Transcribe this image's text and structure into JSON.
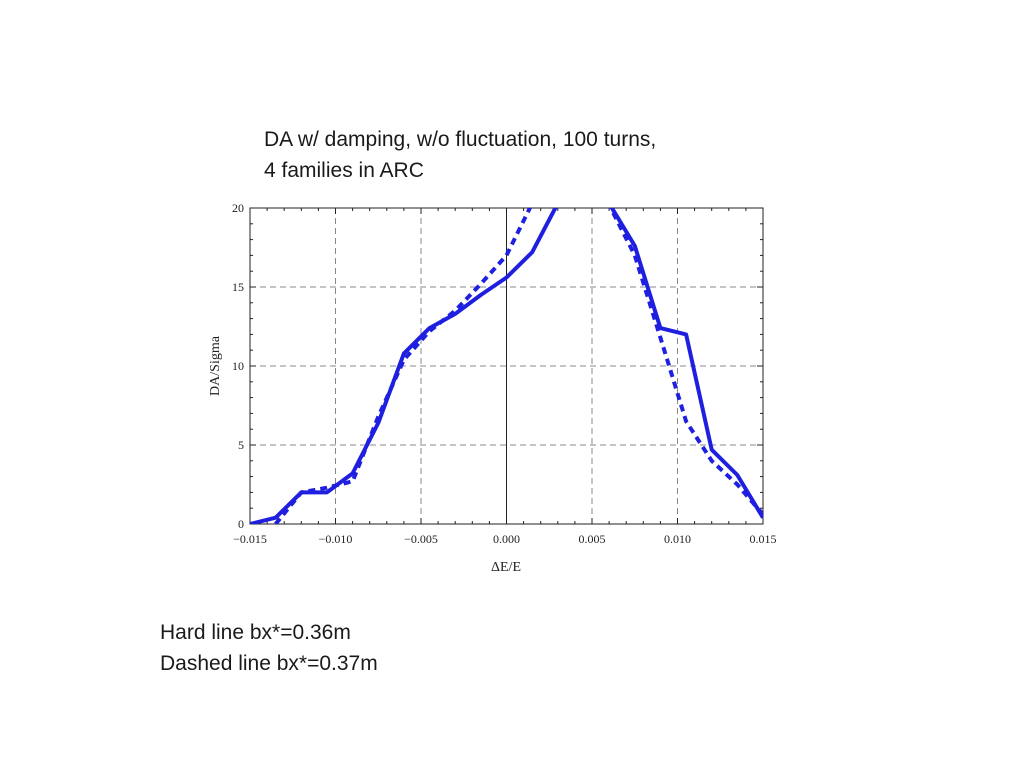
{
  "title": {
    "line1": "DA w/ damping, w/o fluctuation, 100 turns,",
    "line2": "4 families in ARC"
  },
  "notes": {
    "line1": "Hard line bx*=0.36m",
    "line2": "Dashed line bx*=0.37m"
  },
  "chart_data": {
    "type": "line",
    "title": "",
    "xlabel": "ΔE/E",
    "ylabel": "DA/Sigma",
    "xlim": [
      -0.015,
      0.015
    ],
    "ylim": [
      0,
      20
    ],
    "xticks": [
      -0.015,
      -0.01,
      -0.005,
      0.0,
      0.005,
      0.01,
      0.015
    ],
    "xtick_labels": [
      "−0.015",
      "−0.010",
      "−0.005",
      "0.000",
      "0.005",
      "0.010",
      "0.015"
    ],
    "yticks": [
      0,
      5,
      10,
      15,
      20
    ],
    "ytick_labels": [
      "0",
      "5",
      "10",
      "15",
      "20"
    ],
    "grid": true,
    "grid_style": "dashed",
    "line_color": "#1f1fe0",
    "series": [
      {
        "style": "solid",
        "x": [
          -0.015,
          -0.0135,
          -0.012,
          -0.0105,
          -0.009,
          -0.0075,
          -0.006,
          -0.0045,
          -0.003,
          -0.0015,
          0.0,
          0.0015,
          0.003,
          0.0045,
          0.006,
          0.0075,
          0.009,
          0.0105,
          0.012,
          0.0135,
          0.015
        ],
        "y": [
          0.0,
          0.4,
          2.0,
          2.0,
          3.2,
          6.4,
          10.8,
          12.4,
          13.3,
          14.5,
          15.6,
          17.2,
          20.3,
          21.5,
          20.3,
          17.6,
          12.4,
          12.0,
          4.7,
          3.1,
          0.4
        ]
      },
      {
        "style": "dashed",
        "x": [
          -0.0135,
          -0.012,
          -0.0105,
          -0.009,
          -0.0075,
          -0.006,
          -0.0045,
          -0.003,
          -0.0015,
          0.0,
          0.0015,
          0.003,
          0.0045,
          0.006,
          0.0075,
          0.009,
          0.0105,
          0.012,
          0.0135,
          0.015
        ],
        "y": [
          0.0,
          2.0,
          2.3,
          2.7,
          6.8,
          10.4,
          12.2,
          13.5,
          15.2,
          17.0,
          20.3,
          22.0,
          22.0,
          20.2,
          17.0,
          11.8,
          6.5,
          4.0,
          2.5,
          0.6
        ]
      }
    ]
  }
}
